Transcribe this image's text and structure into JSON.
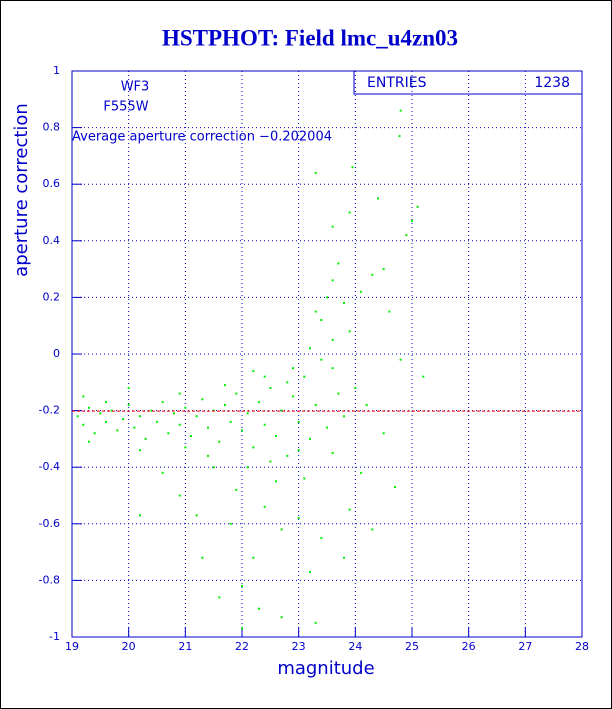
{
  "chart_data": {
    "type": "scatter",
    "title": "HSTPHOT: Field lmc_u4zn03",
    "xlabel": "magnitude",
    "ylabel": "aperture correction",
    "labels": [
      "WF3",
      "F555W"
    ],
    "annotation": "Average aperture correction −0.202004",
    "average_line": {
      "value": -0.202004,
      "color": "#ff0000"
    },
    "stats": {
      "name": "ENTRIES",
      "value": 1238
    },
    "xlim": [
      19,
      28
    ],
    "xticks": [
      19,
      20,
      21,
      22,
      23,
      24,
      25,
      26,
      27,
      28
    ],
    "ylim": [
      -1,
      1
    ],
    "yticks": [
      -1,
      -0.8,
      -0.6,
      -0.4,
      -0.2,
      0,
      0.2,
      0.4,
      0.6,
      0.8,
      1
    ],
    "grid": true,
    "series": [
      {
        "color": "#00ee00",
        "x": [
          19.1,
          19.2,
          19.3,
          19.4,
          19.5,
          19.6,
          19.7,
          19.8,
          19.9,
          20.0,
          20.1,
          20.2,
          20.3,
          20.4,
          20.5,
          20.6,
          20.7,
          20.8,
          20.9,
          21.0,
          21.1,
          21.2,
          21.3,
          21.4,
          21.5,
          21.6,
          21.7,
          21.8,
          21.9,
          22.0,
          22.1,
          22.2,
          22.3,
          22.4,
          22.5,
          22.6,
          22.7,
          22.8,
          22.9,
          23.0,
          23.1,
          23.2,
          23.3,
          23.4,
          23.5,
          23.6,
          23.7,
          23.8,
          19.3,
          19.6,
          20.2,
          20.9,
          21.4,
          21.7,
          22.1,
          22.4,
          22.6,
          22.9,
          23.2,
          23.4,
          23.5,
          23.6,
          23.7,
          23.8,
          23.9,
          23.3,
          23.6,
          24.0,
          24.1,
          24.3,
          24.5,
          23.9,
          23.6,
          23.3,
          23.95,
          24.4,
          24.8,
          24.78,
          24.9,
          25.0,
          25.1,
          24.6,
          24.8,
          25.2,
          24.2,
          24.5,
          24.1,
          24.7,
          23.9,
          24.3,
          23.8,
          23.4,
          23.2,
          23.0,
          22.7,
          22.4,
          22.2,
          22.0,
          21.8,
          21.6,
          21.3,
          21.2,
          20.9,
          20.6,
          20.2,
          22.3,
          22.7,
          23.3,
          22.0,
          21.9,
          22.5,
          21.5,
          23.1,
          23.6,
          20.0,
          19.2,
          21.0,
          22.8,
          22.2,
          23.0
        ],
        "values": [
          -0.22,
          -0.25,
          -0.19,
          -0.28,
          -0.21,
          -0.24,
          -0.2,
          -0.27,
          -0.23,
          -0.18,
          -0.26,
          -0.22,
          -0.3,
          -0.2,
          -0.24,
          -0.17,
          -0.28,
          -0.21,
          -0.25,
          -0.19,
          -0.29,
          -0.22,
          -0.16,
          -0.26,
          -0.2,
          -0.31,
          -0.18,
          -0.24,
          -0.14,
          -0.27,
          -0.21,
          -0.33,
          -0.17,
          -0.25,
          -0.12,
          -0.29,
          -0.2,
          -0.36,
          -0.15,
          -0.24,
          -0.08,
          -0.3,
          -0.18,
          -0.02,
          -0.26,
          0.05,
          -0.14,
          -0.22,
          -0.31,
          -0.17,
          -0.34,
          -0.14,
          -0.36,
          -0.11,
          -0.4,
          -0.08,
          -0.45,
          -0.05,
          0.02,
          0.12,
          0.2,
          0.26,
          0.32,
          0.18,
          0.08,
          0.15,
          -0.05,
          -0.12,
          0.22,
          0.28,
          0.3,
          0.5,
          0.45,
          0.64,
          0.66,
          0.55,
          0.86,
          0.77,
          0.42,
          0.47,
          0.52,
          0.15,
          -0.02,
          -0.08,
          -0.18,
          -0.28,
          -0.42,
          -0.47,
          -0.55,
          -0.62,
          -0.72,
          -0.65,
          -0.77,
          -0.58,
          -0.62,
          -0.54,
          -0.72,
          -0.82,
          -0.6,
          -0.86,
          -0.72,
          -0.57,
          -0.5,
          -0.42,
          -0.57,
          -0.9,
          -0.93,
          -0.95,
          -0.97,
          -0.48,
          -0.38,
          -0.4,
          -0.44,
          -0.35,
          -0.12,
          -0.15,
          -0.33,
          -0.1,
          -0.06,
          -0.34
        ]
      }
    ]
  }
}
